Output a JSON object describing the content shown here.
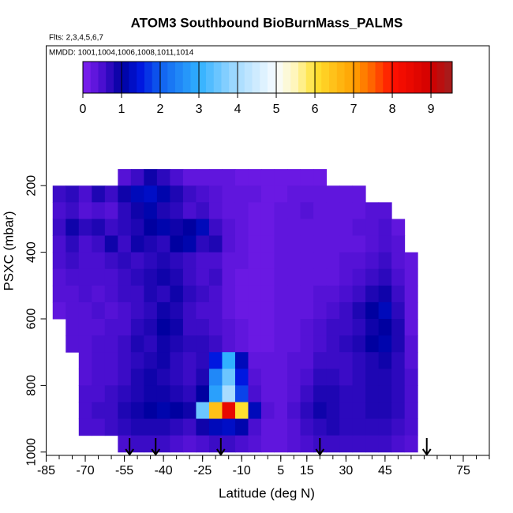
{
  "chart_data": {
    "type": "heatmap",
    "title": "ATOM3 Southbound BioBurnMass_PALMS",
    "subtitle": "Flts: 2,3,4,5,6,7",
    "annotation": "MMDD: 1001,1004,1006,1008,1011,1014",
    "x_label": "Latitude (deg N)",
    "y_label": "PSXC (mbar)",
    "xlim": [
      -85,
      85
    ],
    "ylim": [
      1010,
      -220
    ],
    "xticks": [
      -85,
      -70,
      -55,
      -40,
      -25,
      -10,
      5,
      15,
      30,
      45,
      75
    ],
    "xminor_ticks": [
      -85,
      -80,
      -75,
      -70,
      -65,
      -60,
      -55,
      -50,
      -45,
      -40,
      -35,
      -30,
      -25,
      -20,
      -15,
      -10,
      -5,
      0,
      5,
      10,
      15,
      20,
      25,
      30,
      35,
      40,
      45,
      50,
      55,
      60,
      65,
      70,
      75,
      80,
      85
    ],
    "yticks": [
      200,
      400,
      600,
      800,
      1000
    ],
    "x": [
      -80,
      -75,
      -70,
      -65,
      -60,
      -55,
      -50,
      -45,
      -40,
      -35,
      -30,
      -25,
      -20,
      -15,
      -10,
      -5,
      0,
      5,
      10,
      15,
      20,
      25,
      30,
      35,
      40,
      45,
      50,
      55
    ],
    "y": [
      175,
      225,
      275,
      325,
      375,
      425,
      475,
      525,
      575,
      625,
      675,
      725,
      775,
      825,
      875,
      925,
      975
    ],
    "z": [
      [
        null,
        null,
        null,
        null,
        null,
        0.4,
        0.6,
        0.9,
        0.7,
        0.5,
        0.3,
        0.3,
        0.3,
        0.3,
        0.2,
        0.2,
        0.2,
        0.2,
        0.2,
        0.2,
        0.2,
        null,
        null,
        null,
        null,
        null,
        null,
        null
      ],
      [
        0.6,
        0.7,
        0.5,
        0.8,
        0.6,
        0.9,
        1.2,
        1.3,
        1.1,
        0.8,
        0.6,
        0.5,
        0.4,
        0.3,
        0.3,
        0.3,
        0.2,
        0.2,
        0.3,
        0.3,
        0.3,
        0.3,
        0.3,
        0.3,
        null,
        null,
        null,
        null
      ],
      [
        0.5,
        0.6,
        0.4,
        0.5,
        0.4,
        0.7,
        0.9,
        1.1,
        0.8,
        0.7,
        0.5,
        0.6,
        0.4,
        0.3,
        0.3,
        0.2,
        0.2,
        0.3,
        0.3,
        0.4,
        0.3,
        0.3,
        0.3,
        0.3,
        0.4,
        0.4,
        null,
        null
      ],
      [
        0.6,
        0.9,
        0.7,
        0.8,
        0.6,
        0.7,
        0.8,
        1.0,
        1.1,
        0.9,
        1.0,
        1.2,
        0.6,
        0.4,
        0.3,
        0.2,
        0.2,
        0.3,
        0.3,
        0.3,
        0.3,
        0.3,
        0.3,
        0.4,
        0.4,
        0.5,
        0.3,
        null
      ],
      [
        0.5,
        0.7,
        0.5,
        0.6,
        0.9,
        0.6,
        0.9,
        0.8,
        0.7,
        1.0,
        1.1,
        0.7,
        0.8,
        0.4,
        0.3,
        0.2,
        0.2,
        0.3,
        0.3,
        0.3,
        0.3,
        0.3,
        0.3,
        0.3,
        0.4,
        0.5,
        0.4,
        null
      ],
      [
        0.5,
        0.6,
        0.5,
        0.5,
        0.6,
        0.7,
        0.6,
        0.7,
        0.8,
        0.7,
        0.6,
        0.5,
        0.5,
        0.3,
        0.3,
        0.2,
        0.2,
        0.3,
        0.3,
        0.3,
        0.3,
        0.3,
        0.4,
        0.4,
        0.5,
        0.6,
        0.4,
        0.3
      ],
      [
        0.4,
        0.5,
        0.5,
        0.5,
        0.5,
        0.6,
        0.7,
        0.8,
        0.9,
        0.8,
        0.6,
        0.5,
        0.6,
        0.3,
        0.2,
        0.2,
        0.2,
        0.3,
        0.3,
        0.3,
        0.3,
        0.3,
        0.4,
        0.5,
        0.6,
        0.7,
        0.5,
        0.3
      ],
      [
        0.4,
        0.4,
        0.5,
        0.4,
        0.5,
        0.6,
        0.6,
        0.8,
        0.7,
        0.9,
        0.7,
        0.6,
        0.5,
        0.3,
        0.2,
        0.2,
        0.2,
        0.3,
        0.3,
        0.3,
        0.4,
        0.4,
        0.5,
        0.6,
        0.8,
        0.9,
        0.6,
        0.3
      ],
      [
        0.3,
        0.4,
        0.4,
        0.5,
        0.4,
        0.5,
        0.6,
        0.7,
        0.9,
        0.8,
        0.6,
        0.5,
        0.5,
        0.3,
        0.2,
        0.2,
        0.2,
        0.3,
        0.3,
        0.3,
        0.4,
        0.5,
        0.6,
        0.8,
        1.0,
        1.2,
        0.7,
        0.3
      ],
      [
        null,
        0.4,
        0.4,
        0.4,
        0.5,
        0.5,
        0.7,
        0.8,
        1.0,
        0.9,
        0.6,
        0.6,
        0.5,
        0.4,
        0.3,
        0.2,
        0.2,
        0.3,
        0.3,
        0.4,
        0.5,
        0.6,
        0.6,
        0.7,
        0.9,
        1.0,
        0.8,
        0.3
      ],
      [
        null,
        0.4,
        0.4,
        0.5,
        0.5,
        0.6,
        0.8,
        0.7,
        0.9,
        0.8,
        0.7,
        0.7,
        0.6,
        0.4,
        0.3,
        0.2,
        0.2,
        0.3,
        0.3,
        0.4,
        0.5,
        0.6,
        0.7,
        0.8,
        1.0,
        1.1,
        0.8,
        0.4
      ],
      [
        null,
        null,
        0.4,
        0.5,
        0.5,
        0.6,
        0.7,
        0.8,
        0.9,
        0.7,
        0.6,
        0.7,
        1.5,
        3.0,
        1.2,
        0.3,
        0.3,
        0.3,
        0.4,
        0.4,
        0.6,
        0.6,
        0.6,
        0.7,
        0.8,
        0.9,
        0.7,
        0.4
      ],
      [
        null,
        null,
        0.4,
        0.5,
        0.5,
        0.6,
        0.8,
        0.9,
        0.8,
        0.7,
        0.6,
        0.8,
        2.5,
        3.5,
        1.5,
        0.4,
        0.3,
        0.3,
        0.4,
        0.5,
        0.7,
        0.7,
        0.6,
        0.7,
        0.8,
        0.8,
        0.7,
        0.5
      ],
      [
        null,
        null,
        0.5,
        0.5,
        0.6,
        0.7,
        0.8,
        0.9,
        0.9,
        0.8,
        0.7,
        1.0,
        2.8,
        4.0,
        1.8,
        0.5,
        0.3,
        0.3,
        0.4,
        0.6,
        0.8,
        0.8,
        0.7,
        0.7,
        0.8,
        0.8,
        0.7,
        0.5
      ],
      [
        null,
        null,
        0.5,
        0.6,
        0.6,
        0.8,
        0.9,
        1.0,
        1.1,
        1.0,
        0.9,
        3.5,
        6.5,
        8.5,
        6.0,
        1.2,
        0.4,
        0.3,
        0.5,
        0.7,
        0.9,
        0.8,
        0.7,
        0.7,
        0.8,
        0.8,
        0.7,
        0.5
      ],
      [
        null,
        null,
        0.5,
        0.5,
        0.6,
        0.7,
        0.8,
        0.8,
        0.8,
        0.7,
        0.6,
        0.9,
        1.2,
        1.3,
        1.1,
        0.5,
        0.3,
        0.3,
        0.4,
        0.6,
        0.7,
        0.8,
        0.7,
        0.7,
        0.7,
        0.7,
        0.6,
        0.5
      ],
      [
        null,
        null,
        null,
        null,
        null,
        0.5,
        0.6,
        0.6,
        0.6,
        0.5,
        0.4,
        0.5,
        0.6,
        0.6,
        0.5,
        0.4,
        0.3,
        0.3,
        0.4,
        0.5,
        0.6,
        0.6,
        0.6,
        0.6,
        0.6,
        0.6,
        0.5,
        0.4
      ]
    ],
    "clim": [
      0,
      9.55
    ],
    "cticks": [
      0,
      1,
      2,
      3,
      4,
      5,
      6,
      7,
      8,
      9
    ],
    "colorscale": [
      [
        0,
        "#8020f0"
      ],
      [
        0.5,
        "#4a0fd0"
      ],
      [
        1,
        "#0000a0"
      ],
      [
        1.5,
        "#0018e0"
      ],
      [
        2,
        "#1060f0"
      ],
      [
        3,
        "#30b0ff"
      ],
      [
        4,
        "#a8dcff"
      ],
      [
        5,
        "#f8fcff"
      ],
      [
        5.5,
        "#fff6b8"
      ],
      [
        6,
        "#ffe030"
      ],
      [
        7,
        "#ffa000"
      ],
      [
        7.5,
        "#ff6000"
      ],
      [
        8,
        "#ff1000"
      ],
      [
        9,
        "#d00000"
      ],
      [
        9.55,
        "#a02020"
      ]
    ],
    "arrows_x": [
      -53,
      -43,
      -18,
      20,
      61
    ]
  }
}
